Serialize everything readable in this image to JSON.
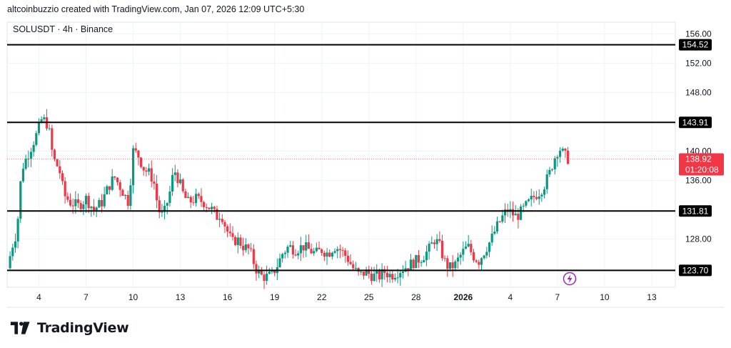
{
  "header": {
    "attribution": "altcoinbuzzio created with TradingView.com, Jan 07, 2026 12:09 UTC+5:30"
  },
  "footer": {
    "brand": "TradingView",
    "logo_icon": "tradingview-logo-icon"
  },
  "colors": {
    "up": "#089981",
    "down": "#f23645",
    "level": "#000000",
    "grid": "#f0f3fa",
    "text": "#131722",
    "lightning": "#9c27b0"
  },
  "chart_data": {
    "type": "candlestick",
    "title": "SOLUSDT · 4h · Binance",
    "symbol": "SOLUSDT",
    "interval": "4h",
    "exchange": "Binance",
    "x_ticks": [
      {
        "day": 4,
        "label": "4"
      },
      {
        "day": 7,
        "label": "7"
      },
      {
        "day": 10,
        "label": "10"
      },
      {
        "day": 13,
        "label": "13"
      },
      {
        "day": 16,
        "label": "16"
      },
      {
        "day": 19,
        "label": "19"
      },
      {
        "day": 22,
        "label": "22"
      },
      {
        "day": 25,
        "label": "25"
      },
      {
        "day": 28,
        "label": "28"
      },
      {
        "day": 31,
        "label": "2026",
        "bold": true
      },
      {
        "day": 34,
        "label": "4"
      },
      {
        "day": 37,
        "label": "7"
      },
      {
        "day": 40,
        "label": "10"
      },
      {
        "day": 43,
        "label": "13"
      }
    ],
    "y_ticks": [
      "156.00",
      "152.00",
      "148.00",
      "140.00",
      "136.00",
      "128.00"
    ],
    "ylim": [
      121.4,
      157.6
    ],
    "xlim": [
      1.98,
      44.5
    ],
    "levels": [
      {
        "value": 154.52,
        "label": "154.52"
      },
      {
        "value": 143.91,
        "label": "143.91"
      },
      {
        "value": 131.81,
        "label": "131.81"
      },
      {
        "value": 123.7,
        "label": "123.70"
      }
    ],
    "last_price": {
      "value": 138.92,
      "label": "138.92",
      "countdown": "01:20:08"
    },
    "anchors": [
      [
        2.0,
        124.0
      ],
      [
        2.3,
        127.0
      ],
      [
        2.6,
        129.0
      ],
      [
        2.9,
        137.5
      ],
      [
        3.3,
        139.5
      ],
      [
        3.6,
        141.0
      ],
      [
        3.9,
        142.5
      ],
      [
        4.2,
        144.5
      ],
      [
        4.6,
        143.5
      ],
      [
        4.9,
        139.0
      ],
      [
        5.3,
        137.5
      ],
      [
        5.6,
        134.0
      ],
      [
        6.0,
        133.0
      ],
      [
        6.5,
        132.5
      ],
      [
        7.0,
        133.5
      ],
      [
        7.5,
        132.0
      ],
      [
        8.0,
        133.0
      ],
      [
        8.4,
        135.0
      ],
      [
        8.8,
        136.5
      ],
      [
        9.2,
        135.0
      ],
      [
        9.7,
        133.0
      ],
      [
        10.0,
        140.0
      ],
      [
        10.3,
        139.5
      ],
      [
        10.7,
        137.5
      ],
      [
        11.0,
        137.0
      ],
      [
        11.3,
        136.0
      ],
      [
        11.6,
        132.0
      ],
      [
        11.9,
        131.0
      ],
      [
        12.3,
        134.0
      ],
      [
        12.6,
        137.5
      ],
      [
        12.9,
        136.0
      ],
      [
        13.2,
        134.0
      ],
      [
        13.5,
        133.0
      ],
      [
        14.0,
        133.5
      ],
      [
        14.5,
        133.0
      ],
      [
        15.0,
        132.0
      ],
      [
        15.3,
        131.0
      ],
      [
        15.6,
        131.5
      ],
      [
        15.9,
        129.5
      ],
      [
        16.3,
        127.5
      ],
      [
        16.6,
        128.0
      ],
      [
        17.0,
        127.0
      ],
      [
        17.4,
        126.5
      ],
      [
        17.8,
        124.0
      ],
      [
        18.1,
        123.0
      ],
      [
        18.4,
        122.8
      ],
      [
        18.8,
        123.0
      ],
      [
        19.2,
        124.5
      ],
      [
        19.5,
        126.0
      ],
      [
        19.9,
        127.0
      ],
      [
        20.3,
        126.5
      ],
      [
        20.8,
        127.0
      ],
      [
        21.2,
        126.5
      ],
      [
        21.6,
        126.0
      ],
      [
        22.0,
        126.5
      ],
      [
        22.4,
        126.0
      ],
      [
        22.8,
        127.0
      ],
      [
        23.2,
        126.5
      ],
      [
        23.6,
        125.5
      ],
      [
        24.0,
        124.0
      ],
      [
        24.4,
        123.0
      ],
      [
        24.8,
        123.5
      ],
      [
        25.2,
        123.0
      ],
      [
        25.6,
        122.8
      ],
      [
        26.0,
        123.5
      ],
      [
        26.4,
        123.0
      ],
      [
        26.8,
        123.5
      ],
      [
        27.2,
        124.0
      ],
      [
        27.6,
        124.5
      ],
      [
        28.0,
        125.0
      ],
      [
        28.4,
        125.5
      ],
      [
        28.8,
        126.5
      ],
      [
        29.2,
        128.0
      ],
      [
        29.5,
        127.0
      ],
      [
        29.8,
        125.0
      ],
      [
        30.1,
        124.0
      ],
      [
        30.5,
        124.5
      ],
      [
        30.9,
        126.0
      ],
      [
        31.3,
        127.0
      ],
      [
        31.7,
        125.5
      ],
      [
        32.0,
        125.0
      ],
      [
        32.4,
        126.5
      ],
      [
        32.8,
        128.0
      ],
      [
        33.1,
        129.5
      ],
      [
        33.5,
        131.0
      ],
      [
        33.8,
        132.0
      ],
      [
        34.1,
        131.5
      ],
      [
        34.4,
        131.0
      ],
      [
        34.8,
        132.0
      ],
      [
        35.2,
        133.0
      ],
      [
        35.6,
        134.0
      ],
      [
        35.9,
        134.5
      ],
      [
        36.2,
        135.5
      ],
      [
        36.5,
        137.0
      ],
      [
        36.8,
        139.0
      ],
      [
        37.1,
        140.5
      ],
      [
        37.4,
        139.5
      ],
      [
        37.7,
        138.9
      ]
    ]
  }
}
